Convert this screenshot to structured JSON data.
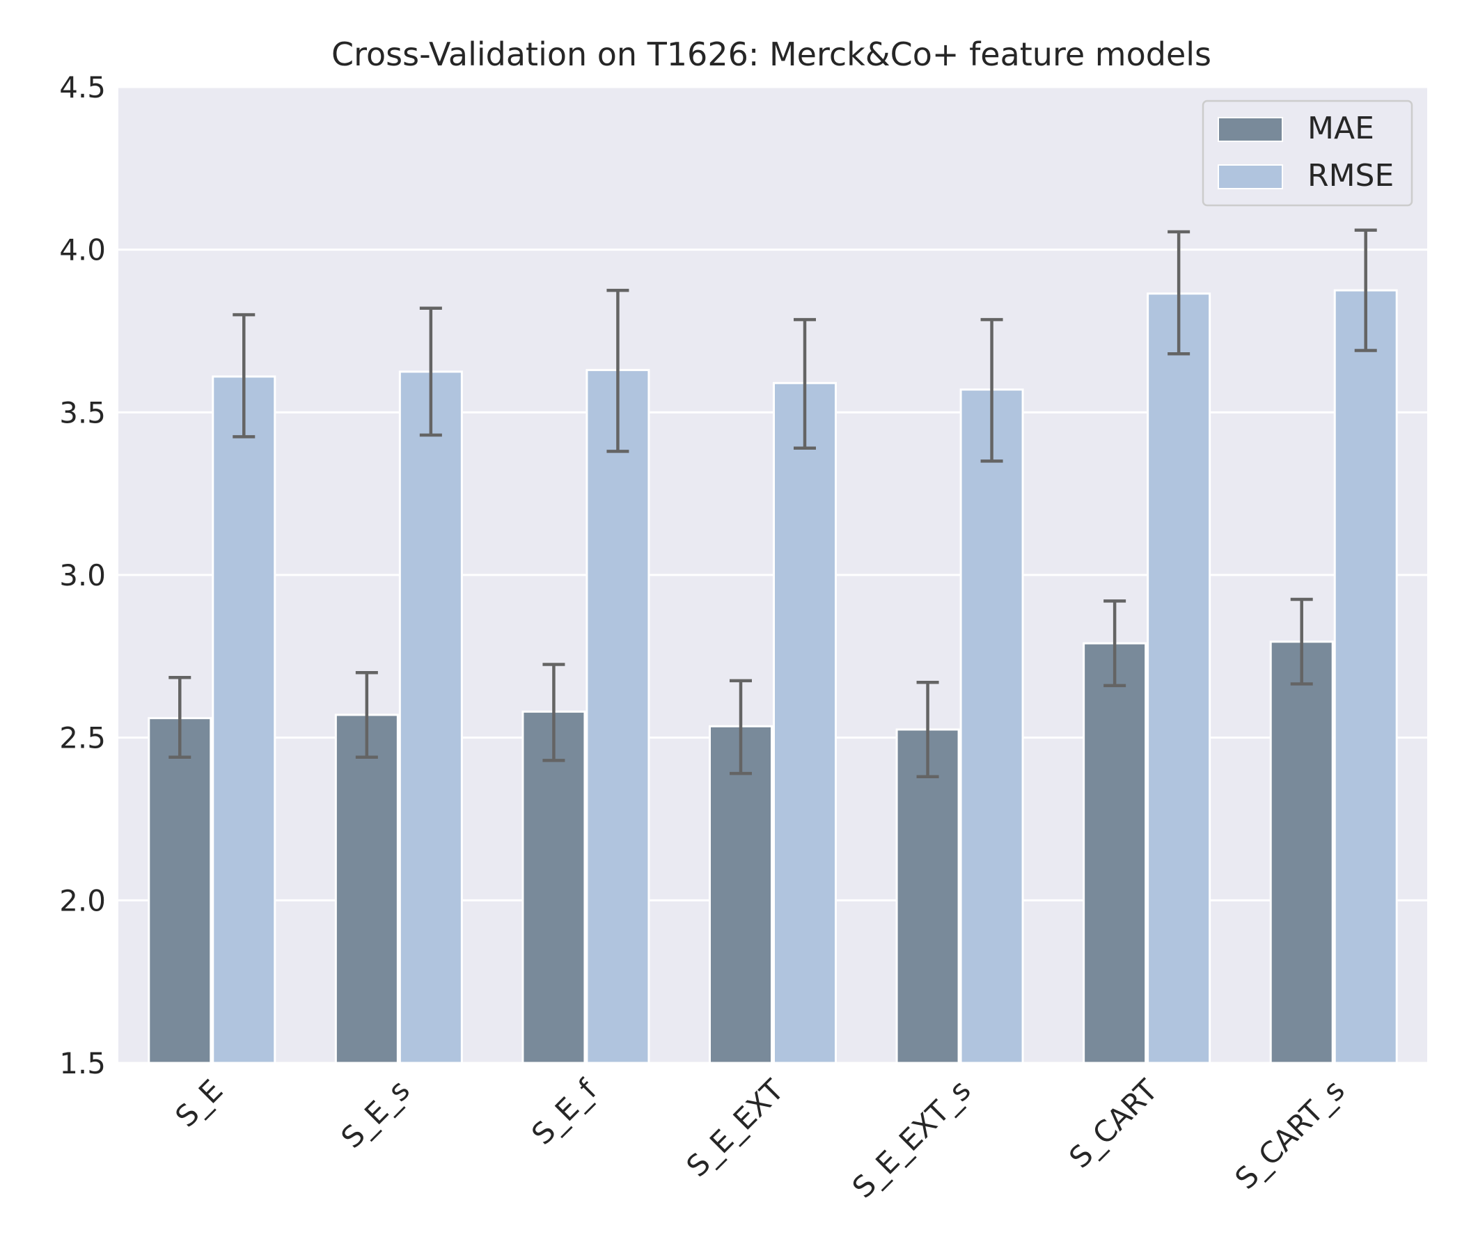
{
  "chart_data": {
    "type": "bar",
    "title": "Cross-Validation on T1626: Merck&Co+ feature models",
    "xlabel": "",
    "ylabel": "",
    "ylim": [
      1.5,
      4.5
    ],
    "yticks": [
      "1.5",
      "2.0",
      "2.5",
      "3.0",
      "3.5",
      "4.0",
      "4.5"
    ],
    "grid": true,
    "legend_position": "top-right",
    "categories": [
      "S_E",
      "S_E_s",
      "S_E_f",
      "S_E_EXT",
      "S_E_EXT_s",
      "S_CART",
      "S_CART_s"
    ],
    "series": [
      {
        "name": "MAE",
        "color": "#798a9a",
        "values": [
          2.56,
          2.57,
          2.58,
          2.535,
          2.525,
          2.79,
          2.795
        ],
        "err_lower": [
          2.44,
          2.44,
          2.43,
          2.39,
          2.38,
          2.66,
          2.665
        ],
        "err_upper": [
          2.685,
          2.7,
          2.725,
          2.675,
          2.67,
          2.92,
          2.925
        ]
      },
      {
        "name": "RMSE",
        "color": "#b0c4de",
        "values": [
          3.61,
          3.625,
          3.63,
          3.59,
          3.57,
          3.865,
          3.875
        ],
        "err_lower": [
          3.425,
          3.43,
          3.38,
          3.39,
          3.35,
          3.68,
          3.69
        ],
        "err_upper": [
          3.8,
          3.82,
          3.875,
          3.785,
          3.785,
          4.055,
          4.06
        ]
      }
    ],
    "colors": {
      "plot_background": "#eaeaf2",
      "grid": "#ffffff",
      "error_bar": "#646464",
      "text": "#262626"
    }
  }
}
